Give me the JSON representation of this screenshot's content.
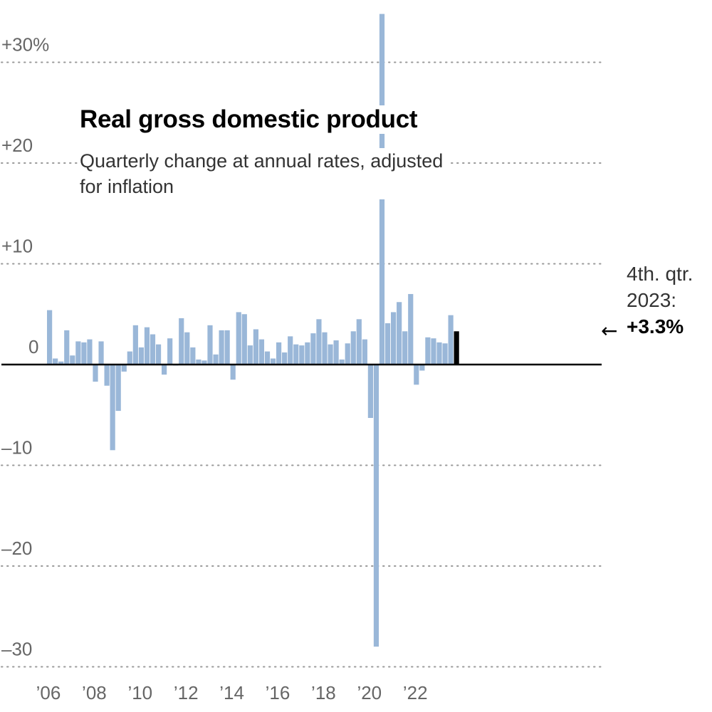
{
  "chart_data": {
    "type": "bar",
    "title": "Real gross domestic product",
    "subtitle": "Quarterly change at annual rates, adjusted for inflation",
    "xlabel": "",
    "ylabel": "",
    "ylim": [
      -30,
      35
    ],
    "grid": true,
    "y_ticks": [
      {
        "value": 30,
        "label": "+30%"
      },
      {
        "value": 20,
        "label": "+20"
      },
      {
        "value": 10,
        "label": "+10"
      },
      {
        "value": 0,
        "label": "0"
      },
      {
        "value": -10,
        "label": "–10"
      },
      {
        "value": -20,
        "label": "–20"
      },
      {
        "value": -30,
        "label": "–30"
      }
    ],
    "x_ticks": [
      {
        "year": 2006,
        "label": "’06"
      },
      {
        "year": 2008,
        "label": "’08"
      },
      {
        "year": 2010,
        "label": "’10"
      },
      {
        "year": 2012,
        "label": "’12"
      },
      {
        "year": 2014,
        "label": "’14"
      },
      {
        "year": 2016,
        "label": "’16"
      },
      {
        "year": 2018,
        "label": "’18"
      },
      {
        "year": 2020,
        "label": "’20"
      },
      {
        "year": 2022,
        "label": "’22"
      }
    ],
    "start_year": 2006,
    "quarters_per_year": 4,
    "values": [
      5.4,
      0.6,
      0.3,
      3.4,
      0.9,
      2.3,
      2.2,
      2.5,
      -1.7,
      2.3,
      -2.1,
      -8.5,
      -4.6,
      -0.7,
      1.3,
      3.9,
      1.7,
      3.7,
      3.0,
      2.0,
      -1.0,
      2.6,
      -0.1,
      4.6,
      3.2,
      1.7,
      0.5,
      0.4,
      3.9,
      1.0,
      3.4,
      3.4,
      -1.5,
      5.2,
      5.0,
      1.9,
      3.5,
      2.5,
      1.3,
      0.6,
      2.2,
      1.2,
      2.8,
      2.0,
      1.9,
      2.2,
      3.1,
      4.5,
      3.2,
      2.0,
      2.4,
      0.5,
      2.1,
      3.3,
      4.5,
      2.5,
      -5.3,
      -28.0,
      34.8,
      4.1,
      5.2,
      6.2,
      3.3,
      7.0,
      -2.0,
      -0.6,
      2.7,
      2.6,
      2.2,
      2.1,
      4.9,
      3.3
    ],
    "highlight_index": 71,
    "colors": {
      "bar": "#9ab7d8",
      "highlight": "#000000",
      "baseline": "#000000",
      "grid": "#999999"
    },
    "annotation": {
      "line1": "4th. qtr.",
      "line2": "2023:",
      "value": "+3.3%",
      "arrow": "←"
    }
  }
}
